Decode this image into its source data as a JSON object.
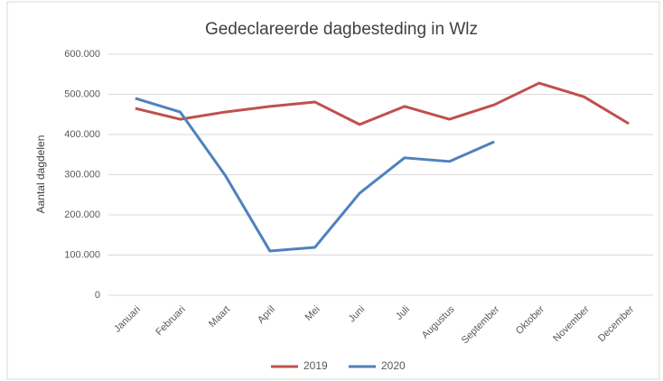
{
  "chart_data": {
    "type": "line",
    "title": "Gedeclareerde dagbesteding in Wlz",
    "y_label": "Aantal dagdelen",
    "categories": [
      "Januari",
      "Februari",
      "Maart",
      "April",
      "Mei",
      "Juni",
      "Juli",
      "Augustus",
      "September",
      "Oktober",
      "November",
      "December"
    ],
    "series": [
      {
        "name": "2019",
        "color": "#c0504d",
        "values": [
          465000,
          438000,
          456000,
          470000,
          481000,
          425000,
          470000,
          438000,
          474000,
          528000,
          494000,
          427000
        ]
      },
      {
        "name": "2020",
        "color": "#4f81bd",
        "values": [
          490000,
          456000,
          299000,
          110000,
          119000,
          254000,
          342000,
          333000,
          382000,
          null,
          null,
          null
        ]
      }
    ],
    "ylim": [
      0,
      600000
    ],
    "yticks": [
      0,
      {
        "value": 100000,
        "label": "100.000"
      },
      {
        "value": 200000,
        "label": "200.000"
      },
      {
        "value": 300000,
        "label": "300.000"
      },
      {
        "value": 400000,
        "label": "400.000"
      },
      {
        "value": 500000,
        "label": "500.000"
      },
      {
        "value": 600000,
        "label": "600.000"
      }
    ],
    "grid": true,
    "legend": "bottom"
  }
}
